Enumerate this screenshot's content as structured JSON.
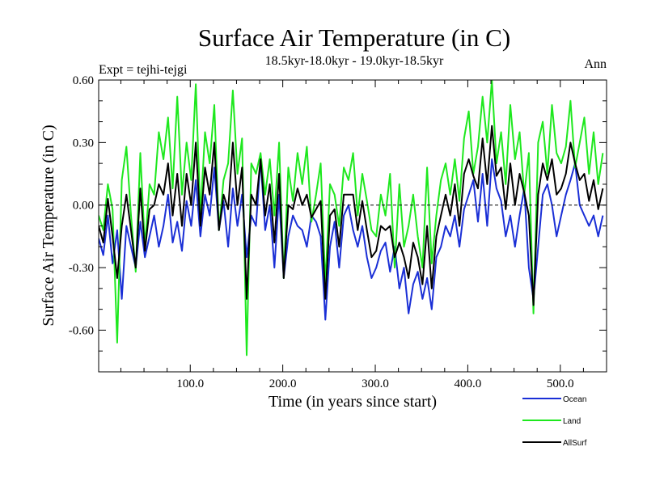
{
  "chart_data": {
    "type": "line",
    "title": "Surface Air Temperature (in C)",
    "subtitle": "18.5kyr-18.0kyr - 19.0kyr-18.5kyr",
    "expt_label": "Expt = tejhi-tejgi",
    "season_label": "Ann",
    "xlabel": "Time (in years since start)",
    "ylabel": "Surface Air Temperature (in C)",
    "xlim": [
      1,
      550
    ],
    "ylim": [
      -0.8,
      0.6
    ],
    "x_ticks": [
      {
        "value": 100,
        "label": "100.0"
      },
      {
        "value": 200,
        "label": "200.0"
      },
      {
        "value": 300,
        "label": "300.0"
      },
      {
        "value": 400,
        "label": "400.0"
      },
      {
        "value": 500,
        "label": "500.0"
      }
    ],
    "y_ticks": [
      {
        "value": 0.6,
        "label": "0.60"
      },
      {
        "value": 0.3,
        "label": "0.30"
      },
      {
        "value": 0.0,
        "label": "0.00"
      },
      {
        "value": -0.3,
        "label": "-0.30"
      },
      {
        "value": -0.6,
        "label": "-0.60"
      }
    ],
    "zero_line": true,
    "legend_position": "bottom-right",
    "x_step": 5,
    "series": [
      {
        "name": "Ocean",
        "color": "#1a2fd6",
        "values": [
          -0.16,
          -0.24,
          -0.05,
          -0.28,
          -0.12,
          -0.45,
          -0.1,
          -0.2,
          -0.3,
          -0.08,
          -0.25,
          -0.15,
          -0.05,
          -0.2,
          -0.1,
          0.05,
          -0.18,
          -0.08,
          -0.22,
          0.02,
          -0.1,
          0.12,
          -0.15,
          0.05,
          -0.05,
          0.18,
          -0.12,
          0.02,
          -0.2,
          0.08,
          -0.1,
          0.05,
          -0.25,
          -0.05,
          -0.1,
          0.22,
          -0.12,
          0.0,
          -0.3,
          0.05,
          -0.35,
          -0.15,
          -0.05,
          -0.1,
          -0.12,
          -0.2,
          -0.05,
          -0.08,
          -0.15,
          -0.55,
          -0.2,
          -0.08,
          -0.3,
          -0.05,
          0.0,
          -0.12,
          -0.2,
          -0.1,
          -0.25,
          -0.35,
          -0.3,
          -0.22,
          -0.18,
          -0.32,
          -0.2,
          -0.4,
          -0.3,
          -0.52,
          -0.38,
          -0.32,
          -0.45,
          -0.35,
          -0.5,
          -0.25,
          -0.2,
          -0.1,
          -0.15,
          -0.05,
          -0.2,
          -0.02,
          0.05,
          0.12,
          -0.08,
          0.15,
          -0.1,
          0.22,
          0.08,
          0.02,
          -0.15,
          -0.05,
          -0.2,
          -0.05,
          0.08,
          -0.3,
          -0.45,
          -0.2,
          0.05,
          0.1,
          0.0,
          -0.15,
          -0.05,
          0.05,
          0.12,
          0.2,
          0.0,
          -0.05,
          -0.1,
          -0.05,
          -0.15,
          -0.05
        ]
      },
      {
        "name": "Land",
        "color": "#1ee81e",
        "values": [
          -0.05,
          -0.12,
          0.1,
          -0.02,
          -0.66,
          0.12,
          0.28,
          -0.05,
          -0.32,
          0.25,
          -0.2,
          0.1,
          0.05,
          0.35,
          0.22,
          0.42,
          0.08,
          0.52,
          0.05,
          0.3,
          0.12,
          0.58,
          -0.05,
          0.35,
          0.2,
          0.48,
          -0.12,
          0.12,
          0.2,
          0.55,
          0.15,
          0.32,
          -0.72,
          0.2,
          0.15,
          0.25,
          0.05,
          0.22,
          -0.05,
          0.3,
          -0.35,
          0.18,
          0.02,
          0.25,
          0.1,
          0.28,
          -0.08,
          0.05,
          0.2,
          -0.38,
          0.1,
          0.05,
          -0.1,
          0.18,
          0.12,
          0.25,
          -0.05,
          0.15,
          0.02,
          -0.12,
          -0.15,
          0.05,
          -0.05,
          0.15,
          -0.3,
          0.1,
          -0.2,
          -0.1,
          0.05,
          -0.15,
          -0.3,
          0.18,
          -0.28,
          -0.05,
          0.12,
          0.2,
          0.05,
          0.22,
          0.02,
          0.32,
          0.45,
          0.15,
          0.28,
          0.52,
          0.3,
          0.6,
          0.2,
          0.35,
          0.1,
          0.48,
          0.22,
          0.35,
          0.05,
          0.25,
          -0.52,
          0.3,
          0.4,
          0.15,
          0.48,
          0.25,
          0.2,
          0.28,
          0.5,
          0.18,
          0.3,
          0.42,
          0.15,
          0.35,
          0.1,
          0.25
        ]
      },
      {
        "name": "AllSurf",
        "color": "#000000",
        "values": [
          -0.1,
          -0.18,
          0.03,
          -0.15,
          -0.35,
          -0.1,
          0.05,
          -0.12,
          -0.3,
          0.08,
          -0.22,
          -0.02,
          0.0,
          0.1,
          0.05,
          0.2,
          -0.05,
          0.15,
          -0.1,
          0.15,
          0.0,
          0.3,
          -0.1,
          0.18,
          0.05,
          0.3,
          -0.12,
          0.05,
          -0.02,
          0.3,
          0.0,
          0.18,
          -0.45,
          0.05,
          0.0,
          0.22,
          -0.05,
          0.1,
          -0.18,
          0.15,
          -0.35,
          0.0,
          -0.02,
          0.08,
          0.0,
          0.05,
          -0.06,
          -0.02,
          0.02,
          -0.45,
          -0.05,
          -0.02,
          -0.2,
          0.05,
          0.05,
          0.05,
          -0.12,
          0.02,
          -0.12,
          -0.25,
          -0.22,
          -0.1,
          -0.12,
          -0.1,
          -0.25,
          -0.18,
          -0.25,
          -0.35,
          -0.18,
          -0.25,
          -0.38,
          -0.1,
          -0.4,
          -0.15,
          -0.05,
          0.05,
          -0.05,
          0.1,
          -0.1,
          0.15,
          0.22,
          0.14,
          0.08,
          0.32,
          0.1,
          0.38,
          0.14,
          0.18,
          -0.02,
          0.2,
          0.0,
          0.15,
          0.06,
          -0.05,
          -0.48,
          0.05,
          0.2,
          0.12,
          0.22,
          0.05,
          0.08,
          0.15,
          0.3,
          0.2,
          0.12,
          0.15,
          0.02,
          0.12,
          -0.02,
          0.08
        ]
      }
    ]
  }
}
